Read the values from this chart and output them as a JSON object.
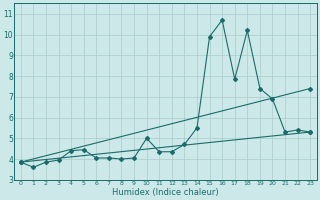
{
  "xlabel": "Humidex (Indice chaleur)",
  "xlim": [
    -0.5,
    23.5
  ],
  "ylim": [
    3,
    11.5
  ],
  "yticks": [
    3,
    4,
    5,
    6,
    7,
    8,
    9,
    10,
    11
  ],
  "xticks": [
    0,
    1,
    2,
    3,
    4,
    5,
    6,
    7,
    8,
    9,
    10,
    11,
    12,
    13,
    14,
    15,
    16,
    17,
    18,
    19,
    20,
    21,
    22,
    23
  ],
  "background_color": "#cce8e8",
  "grid_color": "#aacccc",
  "line_color": "#1a6b6b",
  "lines": [
    {
      "x": [
        0,
        1,
        2,
        3,
        4,
        5,
        6,
        7,
        8,
        9,
        10,
        11,
        12,
        13,
        14,
        15,
        16,
        17,
        18,
        19,
        20,
        21,
        22,
        23
      ],
      "y": [
        3.85,
        3.6,
        3.85,
        3.95,
        4.4,
        4.45,
        4.05,
        4.05,
        4.0,
        4.05,
        5.0,
        4.35,
        4.35,
        4.7,
        5.5,
        9.9,
        10.7,
        7.85,
        10.2,
        7.4,
        6.9,
        5.3,
        5.4,
        5.3
      ]
    },
    {
      "x": [
        0,
        23
      ],
      "y": [
        3.85,
        7.4
      ]
    },
    {
      "x": [
        0,
        23
      ],
      "y": [
        3.85,
        5.3
      ]
    }
  ],
  "marker": "D",
  "marker_size": 2.0,
  "linewidth": 0.8
}
